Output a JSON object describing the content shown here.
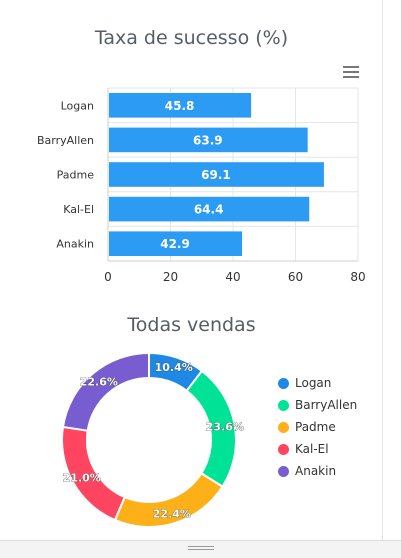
{
  "chart_data": [
    {
      "type": "bar",
      "orientation": "horizontal",
      "title": "Taxa de sucesso (%)",
      "categories": [
        "Logan",
        "BarryAllen",
        "Padme",
        "Kal-El",
        "Anakin"
      ],
      "values": [
        45.8,
        63.9,
        69.1,
        64.4,
        42.9
      ],
      "xlim": [
        0,
        80
      ],
      "xticks": [
        "0",
        "20",
        "40",
        "60",
        "80"
      ],
      "color": "#2b9bf4",
      "grid": true
    },
    {
      "type": "pie",
      "variant": "donut",
      "title": "Todas vendas",
      "labels": [
        "Logan",
        "BarryAllen",
        "Padme",
        "Kal-El",
        "Anakin"
      ],
      "values": [
        10.4,
        23.6,
        22.4,
        21.0,
        22.6
      ],
      "value_labels": [
        "10.4%",
        "23.6%",
        "22.4%",
        "21.0%",
        "22.6%"
      ],
      "colors": [
        "#1e88e5",
        "#00e396",
        "#feb019",
        "#ff4560",
        "#775dd0"
      ],
      "legend_position": "right"
    }
  ],
  "toolbar": {
    "menu_icon": "hamburger-menu-icon"
  }
}
